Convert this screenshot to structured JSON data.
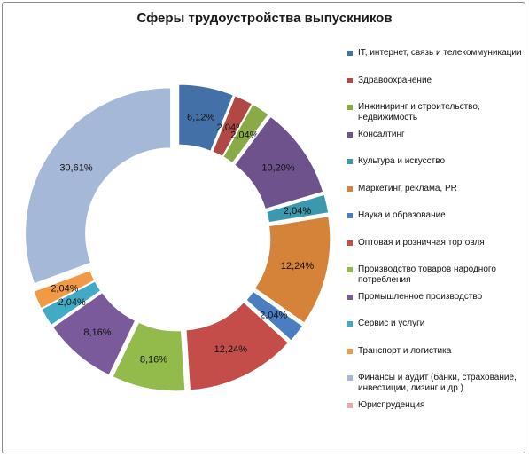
{
  "chart_data": {
    "type": "pie",
    "title": "Сферы трудоустройства выпускников",
    "categories": [
      "IT, интернет, связь и телекоммуникации",
      "Здравоохранение",
      "Инжиниринг и строительство, недвижимость",
      "Консалтинг",
      "Культура и искусство",
      "Маркетинг, реклама, PR",
      "Наука и образование",
      "Оптовая и розничная торговля",
      "Производство товаров народного потребления",
      "Промышленное производство",
      "Сервис и услуги",
      "Транспорт и логистика",
      "Финансы и аудит (банки, страхование, инвестиции, лизинг и др.)",
      "Юриспруденция"
    ],
    "values": [
      6.12,
      2.04,
      2.04,
      10.2,
      2.04,
      12.24,
      2.04,
      12.24,
      8.16,
      8.16,
      2.04,
      2.04,
      30.61,
      0
    ],
    "data_labels": [
      "6,12%",
      "2,04%",
      "2,04%",
      "10,20%",
      "2,04%",
      "12,24%",
      "2,04%",
      "12,24%",
      "8,16%",
      "8,16%",
      "2,04%",
      "2,04%",
      "30,61%",
      ""
    ],
    "colors": [
      "#4470a8",
      "#b04845",
      "#8aaa47",
      "#6d528b",
      "#3b98ae",
      "#d6833a",
      "#4b7ec0",
      "#c44d4a",
      "#92bb4b",
      "#7a5a9a",
      "#41aac4",
      "#f09a45",
      "#a6b8d8",
      "#e7a9a9"
    ],
    "legend_position": "right",
    "style": "exploded-doughnut"
  }
}
